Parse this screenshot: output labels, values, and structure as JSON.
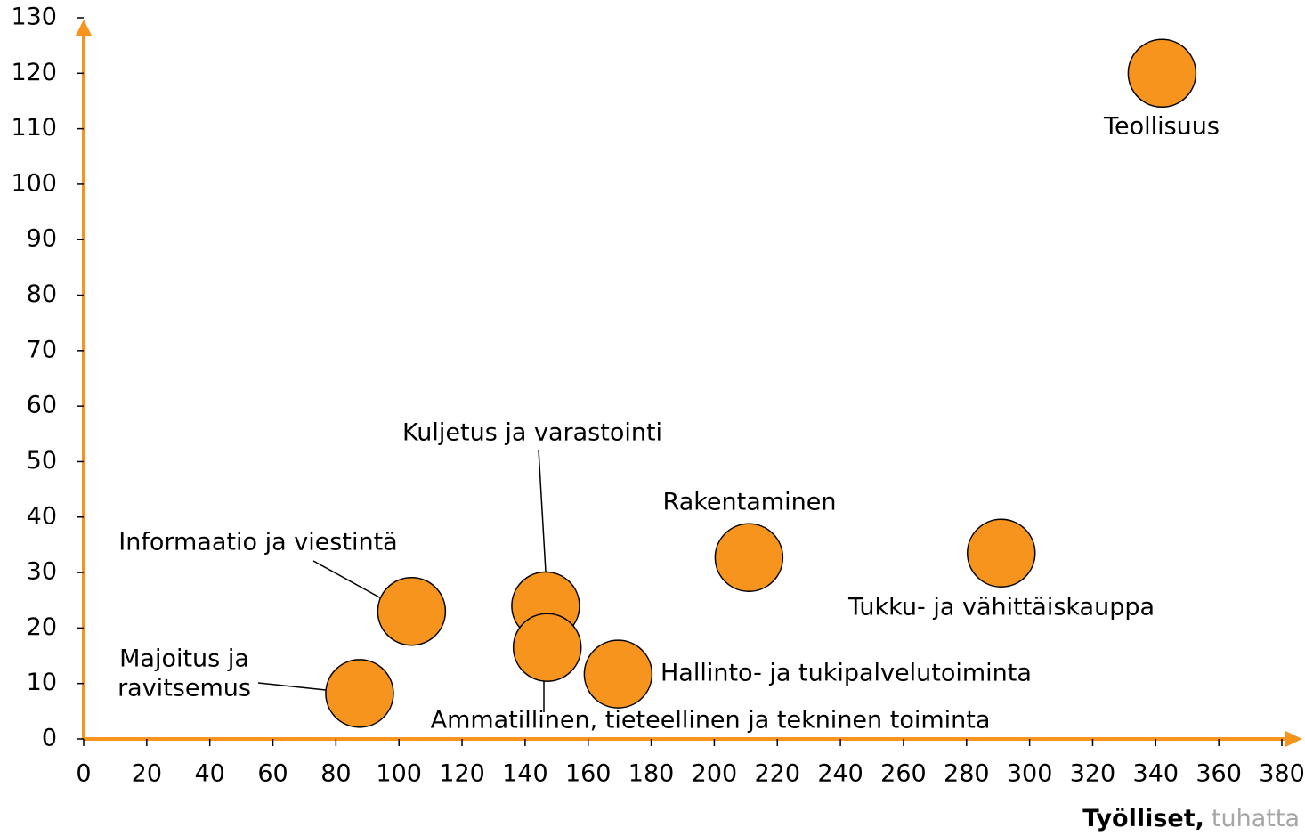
{
  "chart_data": {
    "type": "scatter",
    "xlabel": "Työlliset,",
    "xlabel_unit": "tuhatta",
    "x": [
      342,
      291,
      211,
      146.5,
      147,
      169.5,
      104,
      87.5
    ],
    "values": [
      120,
      33.5,
      32.7,
      24,
      16.5,
      11.7,
      23,
      8.2
    ],
    "labels": [
      [
        "Teollisuus"
      ],
      [
        "Tukku- ja vähittäiskauppa"
      ],
      [
        "Rakentaminen"
      ],
      [
        "Kuljetus ja varastointi"
      ],
      [
        "Ammatillinen, tieteellinen ja tekninen toiminta"
      ],
      [
        "Hallinto- ja tukipalvelutoiminta"
      ],
      [
        "Informaatio ja viestintä"
      ],
      [
        "Majoitus ja",
        "ravitsemus"
      ]
    ],
    "color": "#f7941d",
    "axis_color": "#f7941d",
    "xlim": [
      0,
      380
    ],
    "xticks": [
      0,
      20,
      40,
      60,
      80,
      100,
      120,
      140,
      160,
      180,
      200,
      220,
      240,
      260,
      280,
      300,
      320,
      340,
      360,
      380
    ],
    "ylim": [
      0,
      130
    ],
    "yticks": [
      0,
      10,
      20,
      30,
      40,
      50,
      60,
      70,
      80,
      90,
      100,
      110,
      120,
      130
    ]
  }
}
